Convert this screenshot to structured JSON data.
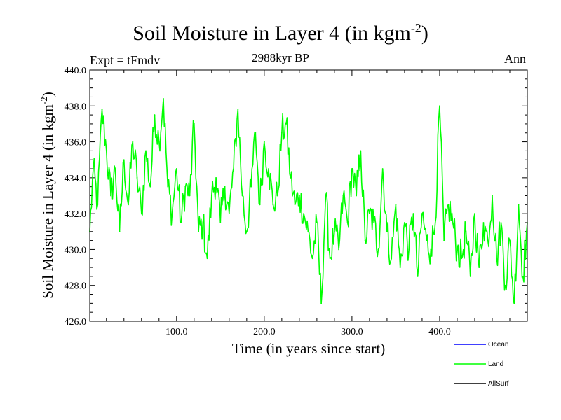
{
  "title": "Soil Moisture in Layer 4 (in kgm",
  "title_exp": "-2",
  "title_close": ")",
  "subtitle": "2988kyr BP",
  "expt_label": "Expt = tFmdv",
  "season_label": "Ann",
  "xlabel": "Time (in years since start)",
  "ylabel": "Soil Moisture in Layer 4 (in kgm",
  "ylabel_exp": "-2",
  "ylabel_close": ")",
  "chart_data": {
    "type": "line",
    "title": "Soil Moisture in Layer 4 (in kgm-2)",
    "xlabel": "Time (in years since start)",
    "ylabel": "Soil Moisture in Layer 4 (in kgm-2)",
    "xlim": [
      1,
      500
    ],
    "ylim": [
      426.0,
      440.0
    ],
    "x_ticks": [
      100,
      200,
      300,
      400
    ],
    "x_tick_labels": [
      "100.0",
      "200.0",
      "300.0",
      "400.0"
    ],
    "y_ticks": [
      426,
      428,
      430,
      432,
      434,
      436,
      438,
      440
    ],
    "y_tick_labels": [
      "426.0",
      "428.0",
      "430.0",
      "432.0",
      "434.0",
      "436.0",
      "438.0",
      "440.0"
    ],
    "legend": [
      {
        "name": "Ocean",
        "color": "#0000ff"
      },
      {
        "name": "Land",
        "color": "#00ff00"
      },
      {
        "name": "AllSurf",
        "color": "#000000"
      }
    ],
    "series": [
      {
        "name": "Land",
        "color": "#00ff00",
        "x": [
          1,
          5,
          10,
          15,
          20,
          25,
          30,
          35,
          40,
          45,
          50,
          55,
          60,
          65,
          70,
          75,
          80,
          85,
          90,
          95,
          100,
          105,
          110,
          115,
          120,
          125,
          130,
          135,
          140,
          145,
          150,
          155,
          160,
          165,
          170,
          175,
          180,
          185,
          190,
          195,
          200,
          205,
          210,
          215,
          220,
          225,
          230,
          235,
          240,
          245,
          250,
          255,
          260,
          265,
          270,
          275,
          280,
          285,
          290,
          295,
          300,
          305,
          310,
          315,
          320,
          325,
          330,
          335,
          340,
          345,
          350,
          355,
          360,
          365,
          370,
          375,
          380,
          385,
          390,
          395,
          400,
          405,
          410,
          415,
          420,
          425,
          430,
          435,
          440,
          445,
          450,
          455,
          460,
          465,
          470,
          475,
          480,
          485,
          490,
          495,
          500
        ],
        "values": [
          431.0,
          434.5,
          432.5,
          437.8,
          435.5,
          433.0,
          434.5,
          431.0,
          435.0,
          432.5,
          436.0,
          434.0,
          432.0,
          435.5,
          433.5,
          437.5,
          436.0,
          438.4,
          433.5,
          432.0,
          434.5,
          431.5,
          433.5,
          433.0,
          437.0,
          431.0,
          431.5,
          429.5,
          433.0,
          434.0,
          431.5,
          433.5,
          432.0,
          434.5,
          437.8,
          433.0,
          431.0,
          433.5,
          436.5,
          432.5,
          436.0,
          434.5,
          432.5,
          433.0,
          436.5,
          437.0,
          434.0,
          432.5,
          433.0,
          432.0,
          431.0,
          429.5,
          431.5,
          427.0,
          433.0,
          429.5,
          431.0,
          430.0,
          433.0,
          431.5,
          434.5,
          433.0,
          435.5,
          430.5,
          432.0,
          431.5,
          430.0,
          434.5,
          431.0,
          429.5,
          432.5,
          429.0,
          431.5,
          430.0,
          432.0,
          428.5,
          432.0,
          430.5,
          430.0,
          431.5,
          438.0,
          430.5,
          432.5,
          431.5,
          430.0,
          429.5,
          431.0,
          428.5,
          432.0,
          429.0,
          431.5,
          430.5,
          433.0,
          429.5,
          431.5,
          428.0,
          430.5,
          427.0,
          432.5,
          428.5,
          431.5
        ]
      }
    ]
  }
}
